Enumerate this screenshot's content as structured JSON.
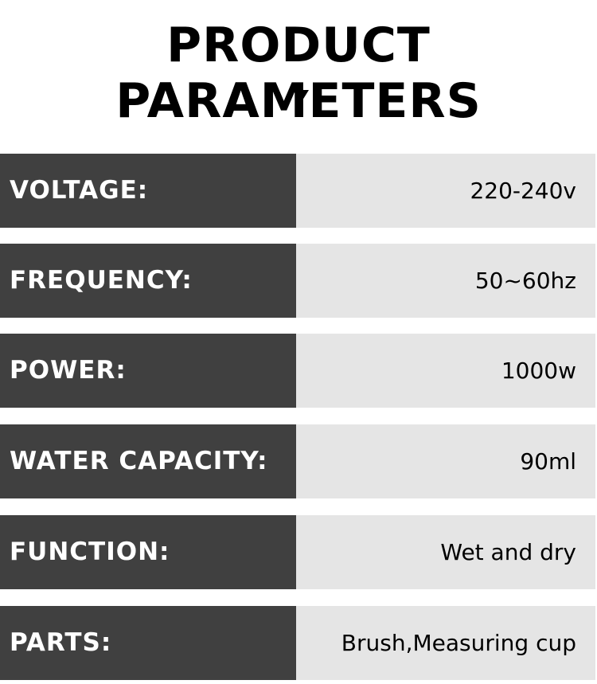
{
  "header": {
    "title": "PRODUCT PARAMETERS"
  },
  "table": {
    "rows": [
      [
        "VOLTAGE:",
        "220-240v"
      ],
      [
        "FREQUENCY:",
        "50~60hz"
      ],
      [
        "POWER:",
        "1000w"
      ],
      [
        "WATER CAPACITY:",
        "90ml"
      ],
      [
        "FUNCTION:",
        "Wet and dry"
      ],
      [
        "PARTS:",
        "Brush,Measuring cup"
      ]
    ]
  }
}
